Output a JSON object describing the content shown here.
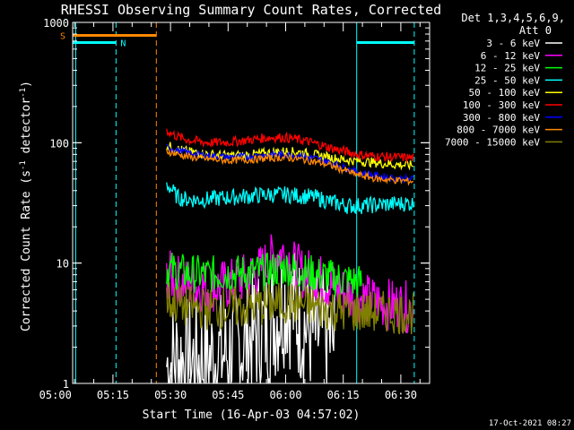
{
  "chart_data": {
    "type": "line",
    "title": "RHESSI Observing Summary Count Rates, Corrected",
    "xlabel": "Start Time (16-Apr-03 04:57:02)",
    "ylabel_main": "Corrected Count Rate (s",
    "ylabel_exp1": "-1",
    "ylabel_mid": " detector",
    "ylabel_exp2": "-1",
    "ylabel_end": ")",
    "yscale": "log",
    "ylim": [
      1,
      1000
    ],
    "xlim_minutes": [
      4.5,
      97.5
    ],
    "x_ticks": [
      {
        "label": "05:00",
        "minutes": 0
      },
      {
        "label": "05:15",
        "minutes": 15
      },
      {
        "label": "05:30",
        "minutes": 30
      },
      {
        "label": "05:45",
        "minutes": 45
      },
      {
        "label": "06:00",
        "minutes": 60
      },
      {
        "label": "06:15",
        "minutes": 75
      },
      {
        "label": "06:30",
        "minutes": 90
      }
    ],
    "y_ticks": [
      {
        "label": "1",
        "value": 1
      },
      {
        "label": "10",
        "value": 10
      },
      {
        "label": "100",
        "value": 100
      },
      {
        "label": "1000",
        "value": 1000
      }
    ],
    "legend_header": [
      "Det 1,3,4,5,6,9,",
      "Att 0"
    ],
    "series": [
      {
        "name": "3 - 6 keV",
        "color": "#ffffff",
        "x": [
          29,
          32,
          35,
          40,
          45,
          50,
          52,
          55,
          58,
          60,
          62,
          64,
          66,
          68,
          70,
          72,
          73
        ],
        "y": [
          1.4,
          1.6,
          1.5,
          1.6,
          1.8,
          2.3,
          2.6,
          3.0,
          3.8,
          5.0,
          4.2,
          3.3,
          2.8,
          2.5,
          2.6,
          2.3,
          2.0
        ]
      },
      {
        "name": "6 - 12 keV",
        "color": "#ff00ff",
        "x": [
          29,
          32,
          35,
          40,
          45,
          50,
          53,
          56,
          58,
          60,
          62,
          64,
          66,
          68,
          70,
          72,
          74,
          76,
          78,
          80,
          82,
          84,
          86,
          88,
          90,
          92,
          93.5
        ],
        "y": [
          8.0,
          7.2,
          6.6,
          6.3,
          6.6,
          7.6,
          8.6,
          10.5,
          12.2,
          12.0,
          9.6,
          8.4,
          8.1,
          7.6,
          7.0,
          6.4,
          6.0,
          5.6,
          5.3,
          5.1,
          4.9,
          4.7,
          4.6,
          4.5,
          4.4,
          4.3,
          4.2
        ]
      },
      {
        "name": "12 - 25 keV",
        "color": "#00ff00",
        "x": [
          29,
          32,
          35,
          40,
          45,
          50,
          55,
          58,
          60,
          62,
          64,
          66,
          68,
          70,
          72,
          74,
          76,
          78,
          80
        ],
        "y": [
          9.0,
          8.5,
          8.2,
          8.0,
          8.2,
          8.3,
          8.4,
          9.0,
          9.2,
          8.8,
          8.5,
          8.3,
          8.0,
          7.8,
          7.5,
          7.4,
          7.2,
          7.0,
          6.8
        ]
      },
      {
        "name": "25 - 50 keV",
        "color": "#00ffff",
        "x": [
          29,
          30,
          31,
          32,
          34,
          37,
          40,
          45,
          50,
          55,
          60,
          65,
          68,
          70,
          72,
          74,
          76,
          78,
          80,
          84,
          88,
          92,
          93.5
        ],
        "y": [
          45,
          42,
          38,
          35,
          34,
          33.5,
          34,
          35,
          36,
          37,
          37,
          36,
          35,
          33.5,
          32,
          31,
          30,
          30,
          30,
          30.5,
          31,
          31.5,
          31
        ]
      },
      {
        "name": "50 - 100 keV",
        "color": "#ffff00",
        "x": [
          29,
          32,
          35,
          40,
          45,
          50,
          55,
          58,
          60,
          62,
          64,
          66,
          68,
          70,
          72,
          74,
          76,
          78,
          80,
          84,
          88,
          92,
          93.5
        ],
        "y": [
          95,
          88,
          84,
          80,
          78,
          79,
          82,
          84,
          85,
          84,
          83,
          81,
          79,
          77,
          75,
          73,
          72,
          71,
          70,
          68,
          66,
          65,
          65
        ]
      },
      {
        "name": "100 - 300 keV",
        "color": "#ff0000",
        "x": [
          29,
          30,
          32,
          35,
          40,
          45,
          50,
          55,
          58,
          60,
          62,
          64,
          66,
          68,
          70,
          72,
          74,
          76,
          78,
          80,
          84,
          88,
          92,
          93.5
        ],
        "y": [
          128,
          120,
          112,
          105,
          100,
          101,
          105,
          110,
          111,
          110,
          108,
          105,
          102,
          98,
          94,
          90,
          87,
          84,
          81,
          79,
          77,
          76,
          75,
          75
        ]
      },
      {
        "name": "300 - 800 keV",
        "color": "#0000ff",
        "x": [
          29,
          32,
          35,
          40,
          45,
          50,
          55,
          58,
          60,
          62,
          64,
          66,
          68,
          70,
          72,
          74,
          76,
          78,
          80,
          84,
          88,
          92,
          93.5
        ],
        "y": [
          92,
          86,
          82,
          78,
          76,
          77,
          79,
          80,
          80,
          79,
          78,
          76,
          74,
          71,
          68,
          65,
          61,
          58,
          56,
          53,
          51,
          50,
          50
        ]
      },
      {
        "name": "800 - 7000 keV",
        "color": "#ff8800",
        "x": [
          29,
          32,
          35,
          40,
          45,
          50,
          55,
          58,
          60,
          62,
          64,
          66,
          68,
          70,
          72,
          74,
          76,
          78,
          80,
          84,
          88,
          92,
          93.5
        ],
        "y": [
          85,
          80,
          76,
          73,
          71,
          72,
          74,
          75,
          75,
          74,
          73,
          71,
          69,
          67,
          64,
          61,
          58,
          55,
          53,
          50,
          49,
          48,
          48
        ]
      },
      {
        "name": "7000 - 15000 keV",
        "color": "#808000",
        "x": [
          29,
          32,
          35,
          40,
          45,
          50,
          55,
          58,
          60,
          62,
          64,
          66,
          68,
          70,
          72,
          74,
          76,
          78,
          80,
          84,
          88,
          92,
          93.5
        ],
        "y": [
          5.0,
          4.5,
          4.3,
          4.2,
          4.2,
          4.3,
          4.5,
          4.6,
          4.7,
          4.6,
          4.5,
          4.4,
          4.3,
          4.2,
          4.1,
          4.0,
          4.0,
          3.9,
          3.9,
          3.9,
          3.9,
          3.8,
          3.8
        ]
      }
    ],
    "flags": [
      {
        "label": "S",
        "color": "#ff8800",
        "value": 780,
        "x_start": 4.5,
        "x_end": 26.3
      },
      {
        "label": "N",
        "color": "#00ffff",
        "value": 680,
        "x_start": 4.5,
        "x_end": 15.8
      },
      {
        "label": "",
        "color": "#00ffff",
        "value": 680,
        "x_start": 78.5,
        "x_end": 93.5
      }
    ],
    "vertical_lines": [
      {
        "minutes": 5.3,
        "color": "#00ffff",
        "style": "solid"
      },
      {
        "minutes": 15.8,
        "color": "#00ffff",
        "style": "dashed"
      },
      {
        "minutes": 26.3,
        "color": "#ff8800",
        "style": "dashed"
      },
      {
        "minutes": 78.5,
        "color": "#00ffff",
        "style": "solid"
      },
      {
        "minutes": 93.5,
        "color": "#00ffff",
        "style": "dashed"
      }
    ],
    "date_stamp": "17-Oct-2021 08:27"
  }
}
